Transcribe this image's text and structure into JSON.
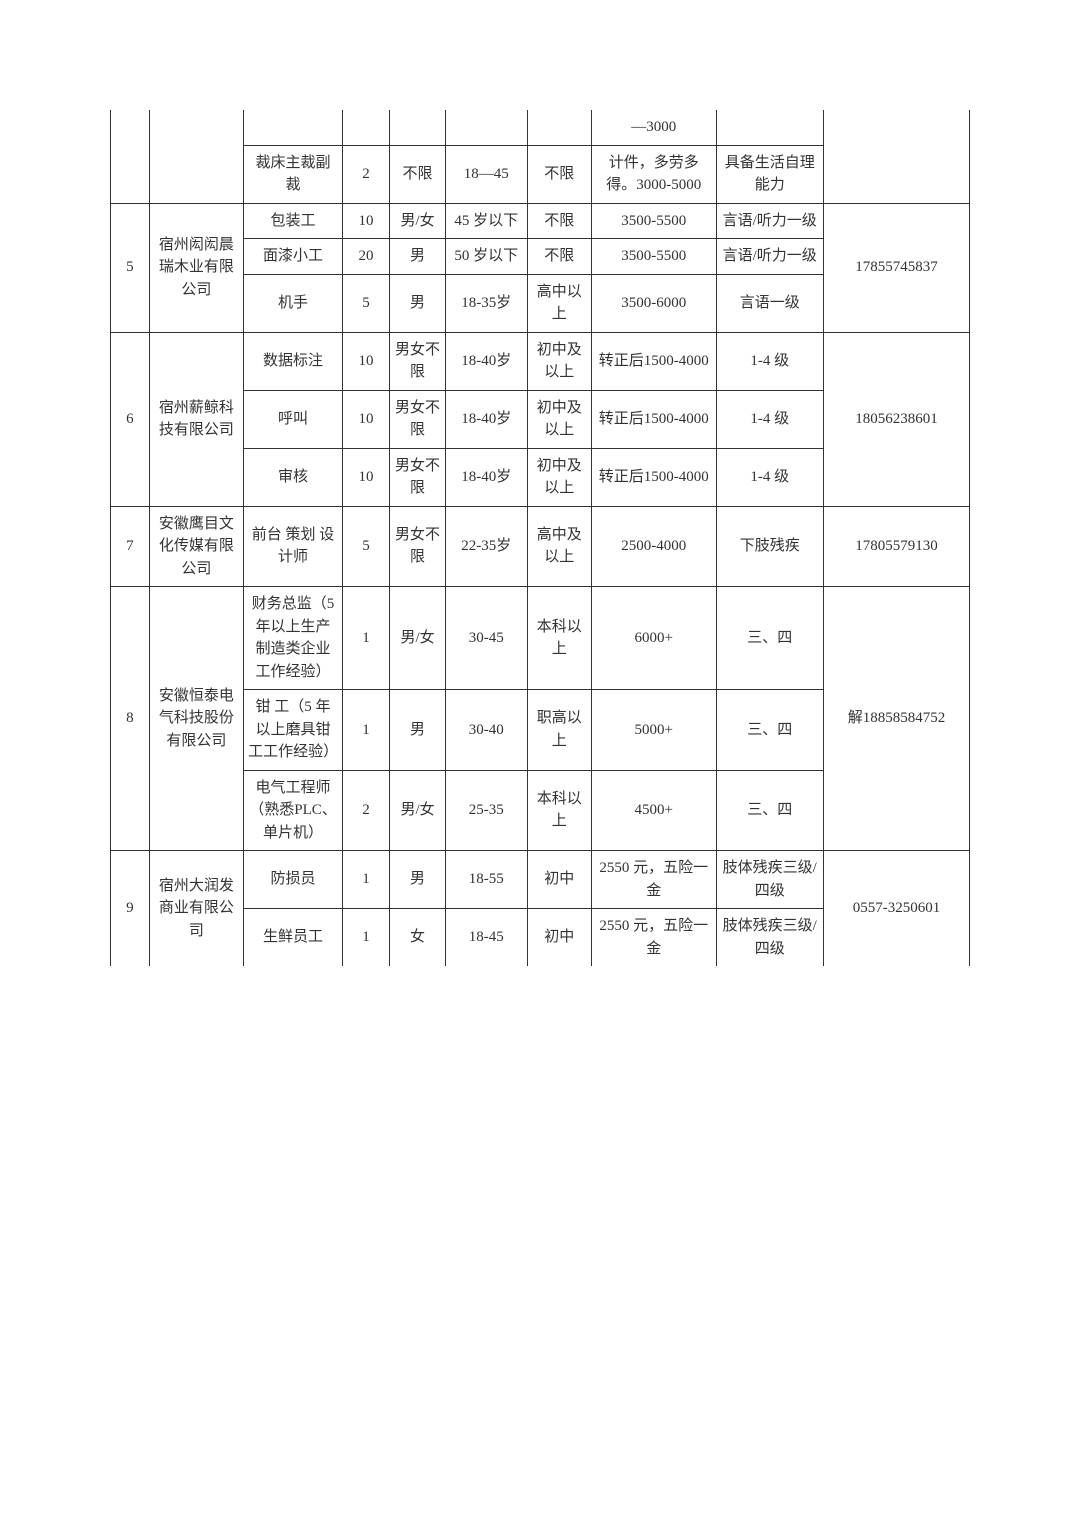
{
  "colors": {
    "background": "#ffffff",
    "border": "#333333",
    "text": "#333333"
  },
  "typography": {
    "font_family": "SimSun",
    "font_size_pt": 11,
    "line_height": 1.5
  },
  "column_widths_pct": [
    4.5,
    11,
    11.5,
    5.5,
    6.5,
    9.5,
    7.5,
    14.5,
    12.5,
    17
  ],
  "rows": {
    "r1": {
      "salary": "—3000"
    },
    "r2": {
      "position": "裁床主裁副裁",
      "count": "2",
      "gender": "不限",
      "age": "18—45",
      "edu": "不限",
      "salary": "计件，多劳多得。3000-5000",
      "req": "具备生活自理能力"
    },
    "r3": {
      "position": "包装工",
      "count": "10",
      "gender": "男/女",
      "age": "45 岁以下",
      "edu": "不限",
      "salary": "3500-5500",
      "req": "言语/听力一级"
    },
    "r4": {
      "position": "面漆小工",
      "count": "20",
      "gender": "男",
      "age": "50 岁以下",
      "edu": "不限",
      "salary": "3500-5500",
      "req": "言语/听力一级"
    },
    "r5": {
      "position": "机手",
      "count": "5",
      "gender": "男",
      "age": "18-35岁",
      "edu": "高中以上",
      "salary": "3500-6000",
      "req": "言语一级"
    },
    "g5": {
      "idx": "5",
      "company": "宿州闳闳晨瑞木业有限公司",
      "contact": "17855745837"
    },
    "r6": {
      "position": "数据标注",
      "count": "10",
      "gender": "男女不限",
      "age": "18-40岁",
      "edu": "初中及以上",
      "salary": "转正后1500-4000",
      "req": "1-4 级"
    },
    "r7": {
      "position": "呼叫",
      "count": "10",
      "gender": "男女不限",
      "age": "18-40岁",
      "edu": "初中及以上",
      "salary": "转正后1500-4000",
      "req": "1-4 级"
    },
    "r8": {
      "position": "审核",
      "count": "10",
      "gender": "男女不限",
      "age": "18-40岁",
      "edu": "初中及以上",
      "salary": "转正后1500-4000",
      "req": "1-4 级"
    },
    "g6": {
      "idx": "6",
      "company": "宿州薪鲸科技有限公司",
      "contact": "18056238601"
    },
    "r9": {
      "position": "前台 策划 设计师",
      "count": "5",
      "gender": "男女不限",
      "age": "22-35岁",
      "edu": "高中及以上",
      "salary": "2500-4000",
      "req": "下肢残疾"
    },
    "g7": {
      "idx": "7",
      "company": "安徽鹰目文化传媒有限公司",
      "contact": "17805579130"
    },
    "r10": {
      "position": "财务总监（5 年以上生产制造类企业工作经验）",
      "count": "1",
      "gender": "男/女",
      "age": "30-45",
      "edu": "本科以上",
      "salary": "6000+",
      "req": "三、四"
    },
    "r11": {
      "position": "钳  工（5 年以上磨具钳工工作经验）",
      "count": "1",
      "gender": "男",
      "age": "30-40",
      "edu": "职高以上",
      "salary": "5000+",
      "req": "三、四"
    },
    "r12": {
      "position": "电气工程师（熟悉PLC、单片机）",
      "count": "2",
      "gender": "男/女",
      "age": "25-35",
      "edu": "本科以上",
      "salary": "4500+",
      "req": "三、四"
    },
    "g8": {
      "idx": "8",
      "company": "安徽恒泰电气科技股份有限公司",
      "contact": "解18858584752"
    },
    "r13": {
      "position": "防损员",
      "count": "1",
      "gender": "男",
      "age": "18-55",
      "edu": "初中",
      "salary": "2550 元，五险一金",
      "req": "肢体残疾三级/四级"
    },
    "r14": {
      "position": "生鲜员工",
      "count": "1",
      "gender": "女",
      "age": "18-45",
      "edu": "初中",
      "salary": "2550 元，五险一金",
      "req": "肢体残疾三级/四级"
    },
    "g9": {
      "idx": "9",
      "company": "宿州大润发商业有限公司",
      "contact": "0557-3250601"
    }
  }
}
